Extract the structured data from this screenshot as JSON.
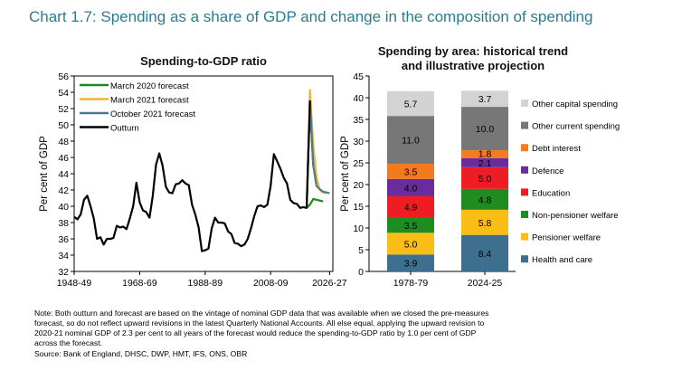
{
  "title": "Chart 1.7: Spending as a share of GDP and change in the composition of spending",
  "notes": [
    "Note: Both outturn and forecast are based on the vintage of nominal GDP data that was available when we closed the pre-measures",
    "forecast, so do not reflect upward revisions in the latest Quarterly National Accounts. All else equal, applying the upward revision to",
    "2020-21 nominal GDP of 2.3 per cent to all years of the forecast would reduce the spending-to-GDP ratio by 1.0 per cent of GDP",
    "across the forecast."
  ],
  "source": "Source: Bank of England, DHSC, DWP, HMT, IFS, ONS, OBR",
  "colors": {
    "title": "#2a7d8f",
    "m2020": "#1a8a1a",
    "m2021": "#f2b233",
    "o2021": "#4d7a91",
    "outturn": "#000000"
  },
  "chart_data": [
    {
      "type": "line",
      "title": "Spending-to-GDP ratio",
      "ylabel": "Per cent of GDP",
      "xlabel": "",
      "ylim": [
        32,
        56
      ],
      "yticks": [
        32,
        34,
        36,
        38,
        40,
        42,
        44,
        46,
        48,
        50,
        52,
        54,
        56
      ],
      "xlim": [
        1948,
        2027
      ],
      "xtick_labels": [
        "1948-49",
        "1968-69",
        "1988-89",
        "2008-09",
        "2026-27"
      ],
      "xtick_pos": [
        1948,
        1968,
        1988,
        2008,
        2026
      ],
      "legend": [
        "March 2020 forecast",
        "March 2021 forecast",
        "October 2021 forecast",
        "Outturn"
      ],
      "series": [
        {
          "name": "Outturn",
          "x": [
            1948,
            1949,
            1950,
            1951,
            1952,
            1953,
            1954,
            1955,
            1956,
            1957,
            1958,
            1959,
            1960,
            1961,
            1962,
            1963,
            1964,
            1965,
            1966,
            1967,
            1968,
            1969,
            1970,
            1971,
            1972,
            1973,
            1974,
            1975,
            1976,
            1977,
            1978,
            1979,
            1980,
            1981,
            1982,
            1983,
            1984,
            1985,
            1986,
            1987,
            1988,
            1989,
            1990,
            1991,
            1992,
            1993,
            1994,
            1995,
            1996,
            1997,
            1998,
            1999,
            2000,
            2001,
            2002,
            2003,
            2004,
            2005,
            2006,
            2007,
            2008,
            2009,
            2010,
            2011,
            2012,
            2013,
            2014,
            2015,
            2016,
            2017,
            2018,
            2019,
            2020,
            2021
          ],
          "y": [
            38.7,
            38.4,
            39.0,
            40.8,
            41.3,
            40.0,
            38.5,
            36.0,
            36.2,
            35.3,
            36.0,
            36.0,
            36.1,
            37.6,
            37.4,
            37.5,
            37.2,
            38.5,
            40.0,
            42.9,
            40.5,
            39.5,
            39.3,
            38.6,
            41.3,
            45.1,
            46.5,
            45.0,
            42.4,
            41.7,
            41.6,
            42.7,
            42.8,
            43.2,
            42.8,
            42.6,
            40.2,
            39.0,
            37.4,
            34.5,
            34.6,
            34.8,
            37.3,
            38.6,
            38.0,
            38.0,
            37.9,
            36.9,
            36.6,
            35.5,
            35.4,
            35.1,
            35.3,
            36.0,
            37.3,
            38.8,
            40.0,
            40.1,
            39.9,
            40.2,
            42.5,
            46.4,
            45.5,
            44.6,
            43.5,
            42.8,
            40.8,
            40.4,
            40.3,
            39.8,
            39.9,
            39.8,
            53.0,
            45.0
          ]
        },
        {
          "name": "March 2020 forecast",
          "x": [
            2019,
            2020,
            2021,
            2022,
            2023,
            2024
          ],
          "y": [
            39.8,
            40.2,
            40.9,
            40.8,
            40.7,
            40.6
          ]
        },
        {
          "name": "March 2021 forecast",
          "x": [
            2019,
            2020,
            2021,
            2022,
            2023,
            2024,
            2025
          ],
          "y": [
            39.8,
            54.3,
            47.5,
            43.6,
            42.0,
            41.7,
            41.6
          ]
        },
        {
          "name": "October 2021 forecast",
          "x": [
            2020,
            2021,
            2022,
            2023,
            2024,
            2025,
            2026
          ],
          "y": [
            53.0,
            45.0,
            42.5,
            42.1,
            41.8,
            41.7,
            41.6
          ]
        }
      ]
    },
    {
      "type": "bar",
      "stacked": true,
      "title": "Spending by area: historical trend and illustrative projection",
      "ylim": [
        0,
        45
      ],
      "yticks": [
        0,
        5,
        10,
        15,
        20,
        25,
        30,
        35,
        40,
        45
      ],
      "categories": [
        "1978-79",
        "2024-25"
      ],
      "series": [
        {
          "name": "Health and care",
          "color": "#3f6f8f",
          "values": [
            3.9,
            8.4
          ]
        },
        {
          "name": "Pensioner welfare",
          "color": "#f9bd16",
          "values": [
            5.0,
            5.8
          ]
        },
        {
          "name": "Non-pensioner welfare",
          "color": "#1e8c1e",
          "values": [
            3.5,
            4.8
          ]
        },
        {
          "name": "Education",
          "color": "#ee1d24",
          "values": [
            4.9,
            5.0
          ]
        },
        {
          "name": "Defence",
          "color": "#6a2c9c",
          "values": [
            4.0,
            2.1
          ]
        },
        {
          "name": "Debt interest",
          "color": "#f47a20",
          "values": [
            3.5,
            1.8
          ]
        },
        {
          "name": "Other current spending",
          "color": "#777777",
          "values": [
            11.0,
            10.0
          ]
        },
        {
          "name": "Other capital spending",
          "color": "#d3d3d3",
          "values": [
            5.7,
            3.7
          ]
        }
      ],
      "legend_order": [
        "Other capital spending",
        "Other current spending",
        "Debt interest",
        "Defence",
        "Education",
        "Non-pensioner welfare",
        "Pensioner welfare",
        "Health and care"
      ]
    }
  ]
}
